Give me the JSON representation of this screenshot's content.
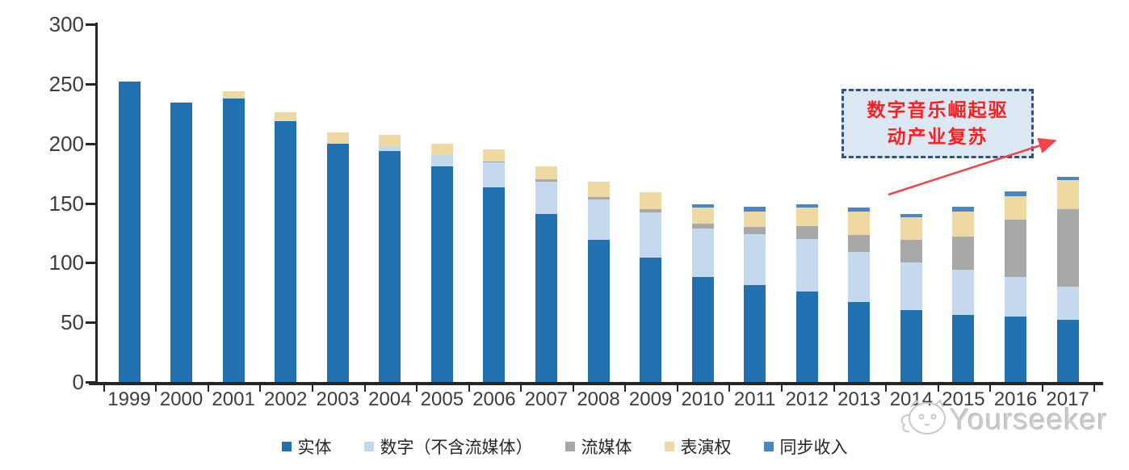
{
  "chart_data": {
    "type": "bar",
    "stacked": true,
    "title": "",
    "xlabel": "",
    "ylabel": "",
    "categories": [
      "1999",
      "2000",
      "2001",
      "2002",
      "2003",
      "2004",
      "2005",
      "2006",
      "2007",
      "2008",
      "2009",
      "2010",
      "2011",
      "2012",
      "2013",
      "2014",
      "2015",
      "2016",
      "2017"
    ],
    "series": [
      {
        "name": "实体",
        "color": "#2171b0",
        "values": [
          252,
          234,
          238,
          219,
          200,
          194,
          181,
          163,
          141,
          119,
          104,
          88,
          81,
          76,
          67,
          60,
          56,
          55,
          52
        ]
      },
      {
        "name": "数字（不含流媒体）",
        "color": "#c4d9ee",
        "values": [
          0,
          0,
          0,
          0,
          0,
          4,
          9,
          21,
          27,
          34,
          38,
          41,
          43,
          44,
          42,
          40,
          38,
          33,
          28
        ]
      },
      {
        "name": "流媒体",
        "color": "#a8a8a8",
        "values": [
          0,
          0,
          0,
          0,
          0,
          0,
          0,
          1,
          2,
          2,
          3,
          4,
          6,
          11,
          14,
          19,
          28,
          48,
          65
        ]
      },
      {
        "name": "表演权",
        "color": "#edd9a1",
        "values": [
          0,
          0,
          6,
          7,
          9,
          9,
          10,
          10,
          11,
          13,
          14,
          13,
          13,
          15,
          20,
          19,
          21,
          20,
          24
        ]
      },
      {
        "name": "同步收入",
        "color": "#4b86c4",
        "values": [
          0,
          0,
          0,
          0,
          0,
          0,
          0,
          0,
          0,
          0,
          0,
          3,
          4,
          3,
          3,
          3,
          4,
          4,
          3
        ]
      }
    ],
    "ylim": [
      0,
      300
    ],
    "yticks": [
      0,
      50,
      100,
      150,
      200,
      250,
      300
    ],
    "legend_position": "bottom",
    "grid": false,
    "axis_color": "#262626"
  },
  "annotation": {
    "line1": "数字音乐崛起驱",
    "line2": "动产业复苏",
    "text_color": "#fb2020",
    "box_fill": "#dbe7f3",
    "box_border": "#31508e",
    "arrow_color": "#f2434b"
  },
  "watermark": {
    "text": "Yourseeker"
  }
}
